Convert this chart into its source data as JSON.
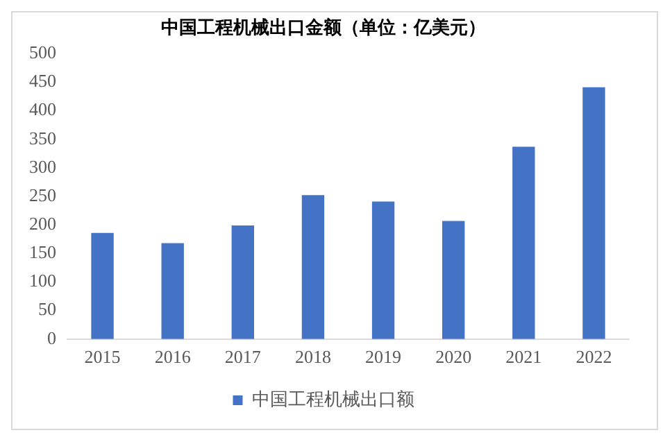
{
  "chart_data": {
    "type": "bar",
    "title": "中国工程机械出口金额（单位：亿美元）",
    "categories": [
      "2015",
      "2016",
      "2017",
      "2018",
      "2019",
      "2020",
      "2021",
      "2022"
    ],
    "series": [
      {
        "name": "中国工程机械出口额",
        "color": "#4472c4",
        "values": [
          186,
          168,
          199,
          252,
          241,
          207,
          337,
          441
        ]
      }
    ],
    "ylim": [
      0,
      500
    ],
    "yticks": [
      0,
      50,
      100,
      150,
      200,
      250,
      300,
      350,
      400,
      450,
      500
    ],
    "grid": false,
    "legend": "bottom"
  }
}
